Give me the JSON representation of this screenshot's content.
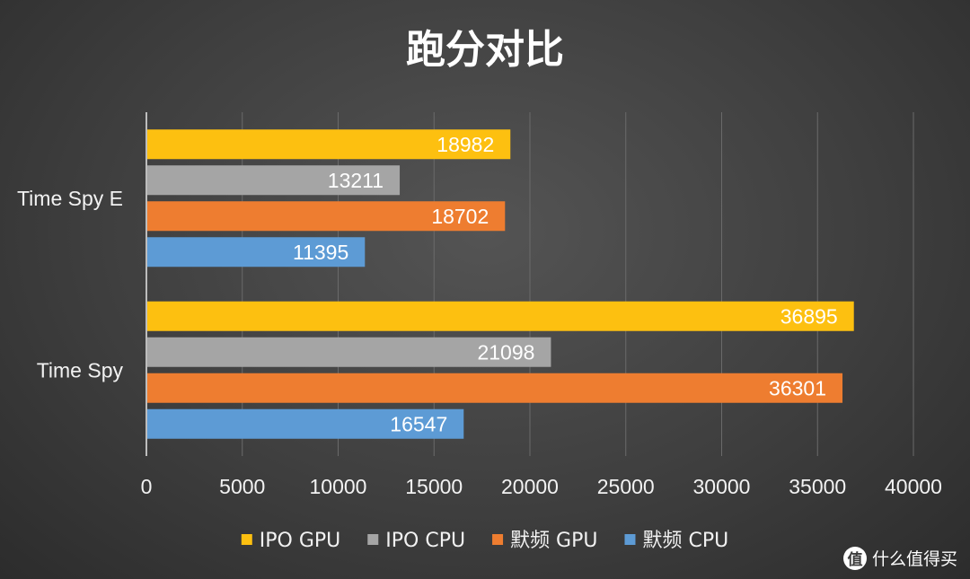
{
  "chart_data": {
    "type": "bar",
    "orientation": "horizontal",
    "title": "跑分对比",
    "categories": [
      "Time Spy E",
      "Time Spy"
    ],
    "series": [
      {
        "name": "IPO GPU",
        "color": "#fdc010",
        "values": [
          18982,
          36895
        ]
      },
      {
        "name": "IPO CPU",
        "color": "#a5a5a5",
        "values": [
          13211,
          21098
        ]
      },
      {
        "name": "默频 GPU",
        "color": "#ee7d30",
        "values": [
          18702,
          36301
        ]
      },
      {
        "name": "默频 CPU",
        "color": "#5d9bd5",
        "values": [
          11395,
          16547
        ]
      }
    ],
    "xlim": [
      0,
      40000
    ],
    "xticks": [
      "0",
      "5000",
      "10000",
      "15000",
      "20000",
      "25000",
      "30000",
      "35000",
      "40000"
    ],
    "grid": true,
    "legend_position": "bottom",
    "data_labels": true
  },
  "watermark": {
    "icon": "值",
    "text": "什么值得买",
    "icon_name": "zhide-logo-icon"
  }
}
